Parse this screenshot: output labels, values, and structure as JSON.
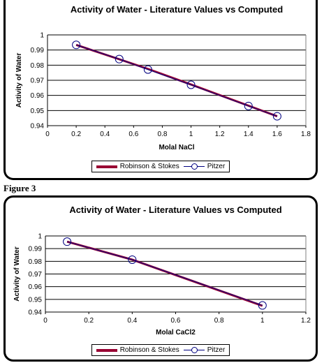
{
  "figure_label": "Figure 3",
  "colors": {
    "robinson": "#990033",
    "pitzer": "#000080",
    "grid": "#000000"
  },
  "chart_data": [
    {
      "type": "line",
      "title": "Activity of Water - Literature Values vs Computed",
      "xlabel": "Molal NaCl",
      "ylabel": "Activity of Water",
      "xlim": [
        0,
        1.8
      ],
      "ylim": [
        0.94,
        1.0
      ],
      "xticks": [
        "0",
        "0.2",
        "0.4",
        "0.6",
        "0.8",
        "1",
        "1.2",
        "1.4",
        "1.6",
        "1.8"
      ],
      "yticks": [
        "0.94",
        "0.95",
        "0.96",
        "0.97",
        "0.98",
        "0.99",
        "1"
      ],
      "grid": "horizontal",
      "legend_position": "bottom",
      "series": [
        {
          "name": "Robinson & Stokes",
          "x": [
            0.2,
            0.5,
            0.7,
            1.0,
            1.4,
            1.6
          ],
          "y": [
            0.9934,
            0.9839,
            0.9775,
            0.9672,
            0.9532,
            0.9462
          ]
        },
        {
          "name": "Pitzer",
          "x": [
            0.2,
            0.5,
            0.7,
            1.0,
            1.4,
            1.6
          ],
          "y": [
            0.9934,
            0.984,
            0.9771,
            0.967,
            0.953,
            0.9462
          ]
        }
      ]
    },
    {
      "type": "line",
      "title": "Activity of Water - Literature Values vs Computed",
      "xlabel": "Molal CaCl2",
      "ylabel": "Activity of Water",
      "xlim": [
        0,
        1.2
      ],
      "ylim": [
        0.94,
        1.0
      ],
      "xticks": [
        "0",
        "0.2",
        "0.4",
        "0.6",
        "0.8",
        "1",
        "1.2"
      ],
      "yticks": [
        "0.94",
        "0.95",
        "0.96",
        "0.97",
        "0.98",
        "0.99",
        "1"
      ],
      "grid": "horizontal",
      "legend_position": "bottom",
      "series": [
        {
          "name": "Robinson & Stokes",
          "x": [
            0.1,
            0.4,
            1.0
          ],
          "y": [
            0.9955,
            0.9813,
            0.9449
          ]
        },
        {
          "name": "Pitzer",
          "x": [
            0.1,
            0.4,
            1.0
          ],
          "y": [
            0.9955,
            0.9813,
            0.9452
          ]
        }
      ]
    }
  ]
}
